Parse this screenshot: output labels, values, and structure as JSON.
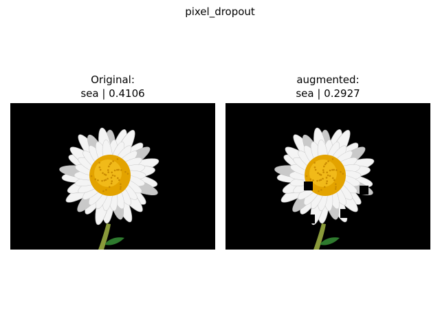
{
  "figure": {
    "title": "pixel_dropout",
    "panels": [
      {
        "title_line1": "Original:",
        "title_line2": "sea | 0.4106"
      },
      {
        "title_line1": "augmented:",
        "title_line2": "sea | 0.2927"
      }
    ]
  },
  "image": {
    "subject": "white daisy flower on black background",
    "colors": {
      "background": "#000000",
      "petal": "#f4f4f4",
      "petal_shade": "#c9c9c9",
      "center": "#e3a300",
      "center_light": "#f4bf1f",
      "stem": "#8a9a3a",
      "leaf": "#2e7a2e"
    }
  }
}
